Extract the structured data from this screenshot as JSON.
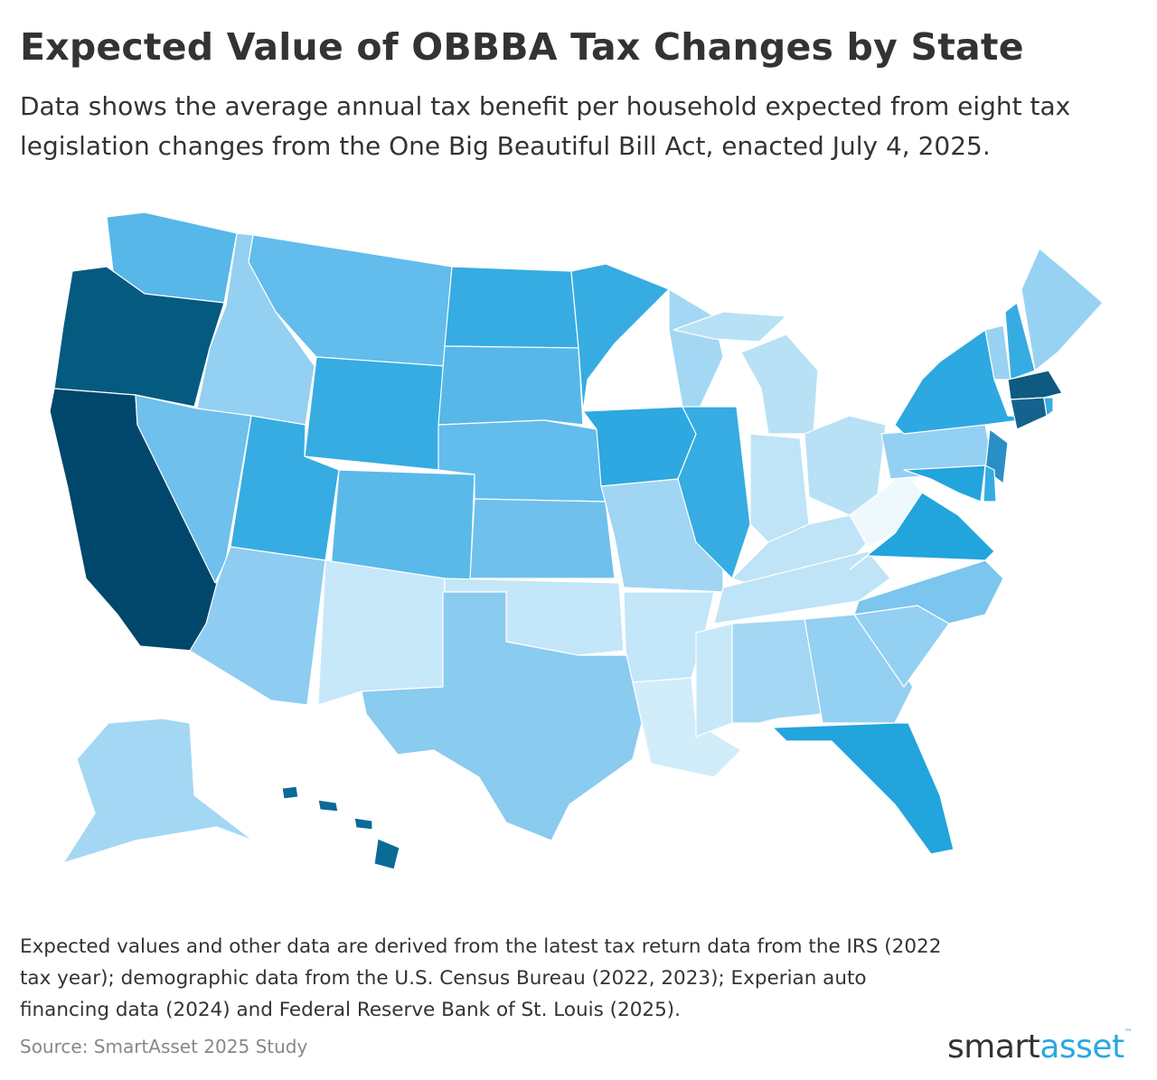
{
  "title": "Expected Value of OBBBA Tax Changes by State",
  "subtitle": "Data shows the average annual tax benefit per household expected from eight tax legislation changes from the One Big Beautiful Bill Act, enacted July 4, 2025.",
  "note": "Expected values and other data are derived from the latest tax return data from the IRS (2022 tax year); demographic data from the U.S. Census Bureau (2022, 2023); Experian auto financing data (2024) and Federal Reserve Bank of St. Louis (2025).",
  "source": "Source: SmartAsset 2025 Study",
  "logo": {
    "part1": "smart",
    "part2": "asset",
    "tm": "™"
  },
  "map_data": {
    "type": "choropleth",
    "region": "United States",
    "state_colors": {
      "CA": "#00476b",
      "OR": "#055a80",
      "MA": "#0f5a80",
      "CT": "#15628e",
      "HI": "#0c6a96",
      "NJ": "#2b8fc7",
      "FL": "#22a4dc",
      "VA": "#22a4dc",
      "NY": "#2da8e0",
      "MN": "#36ace2",
      "ND": "#36ace2",
      "WY": "#36ace2",
      "UT": "#36ace2",
      "IA": "#2da8e0",
      "IL": "#36ace2",
      "NH": "#36ace2",
      "MD": "#22a4dc",
      "DE": "#36ace2",
      "RI": "#36ace2",
      "WA": "#57b7e8",
      "MT": "#62bcec",
      "SD": "#57b7e8",
      "NE": "#62bcec",
      "CO": "#5ab9e9",
      "NV": "#6fc0ec",
      "KS": "#6fc0ec",
      "NC": "#7bc5ee",
      "TX": "#8acbf0",
      "AZ": "#8ecdf1",
      "ID": "#94d0f2",
      "PA": "#94d0f2",
      "GA": "#94d0f2",
      "SC": "#94d0f2",
      "ME": "#98d2f2",
      "VT": "#98d2f2",
      "MO": "#a0d5f3",
      "AL": "#a4d7f3",
      "WI": "#a4d7f3",
      "AK": "#a4d7f3",
      "MI": "#b8e1f6",
      "OH": "#b8e1f6",
      "IN": "#bfe4f7",
      "KY": "#bfe4f7",
      "TN": "#bfe4f7",
      "OK": "#c3e6f8",
      "AR": "#c3e6f8",
      "NM": "#c7e8f9",
      "MS": "#c7e8f9",
      "LA": "#d1edfa",
      "WV": "#eef8fd"
    }
  }
}
